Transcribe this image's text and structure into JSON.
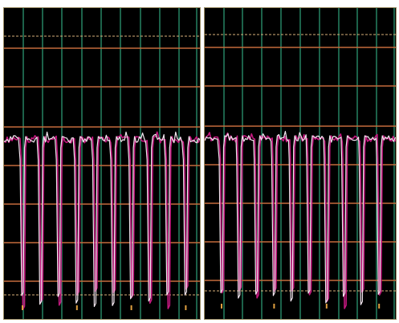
{
  "colors": {
    "background": "#000000",
    "page": "#ffffff",
    "panel_border": "#9a8c63",
    "vertical_grid": "#2fa37a",
    "horizontal_grid": "#c46a3c",
    "reference_line": "#d9b07a",
    "trace_primary": "#f2e6ef",
    "trace_secondary": "#c2187e",
    "trace_marker": "#e0a040"
  },
  "chart_data": [
    {
      "type": "line",
      "panel": "left",
      "cycles": 10,
      "grid": true,
      "series": [
        {
          "color": "#f2e6ef"
        },
        {
          "color": "#c2187e"
        }
      ]
    },
    {
      "type": "line",
      "panel": "right",
      "cycles": 10,
      "grid": true,
      "series": [
        {
          "color": "#f2e6ef"
        },
        {
          "color": "#c2187e"
        }
      ]
    }
  ]
}
